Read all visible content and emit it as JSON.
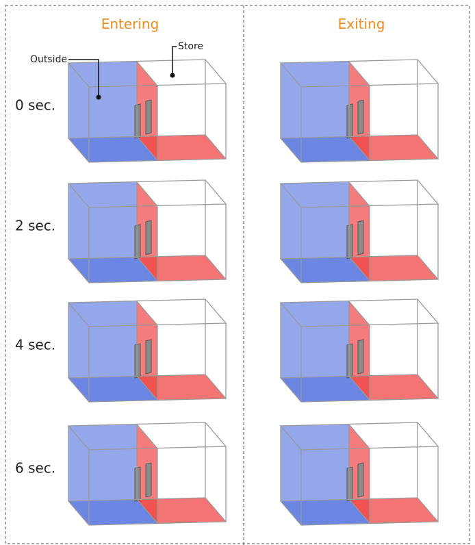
{
  "columns": [
    "Entering",
    "Exiting"
  ],
  "rows": [
    "0 sec.",
    "2 sec.",
    "4 sec.",
    "6 sec."
  ],
  "annotations": {
    "outside": "Outside",
    "store": "Store"
  }
}
